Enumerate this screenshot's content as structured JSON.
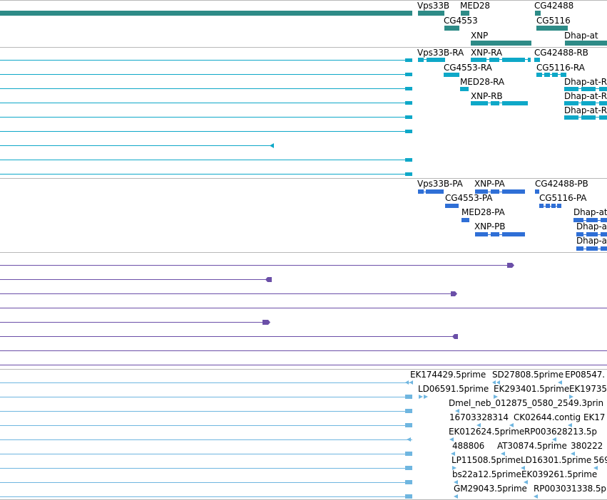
{
  "colors": {
    "gene": "#2e8b87",
    "transcript_flybase": "#0ea8c8",
    "transcript_refseq": "#2f6fd6",
    "mrna_purple": "#6b4fa8",
    "est": "#6fb6e0",
    "separator": "#b8b8b8"
  },
  "tracks": {
    "genes": {
      "labels": [
        "Vps33B",
        "MED28",
        "CG42488",
        "CG4553",
        "CG5116",
        "XNP",
        "Dhap-at"
      ]
    },
    "flybase_transcripts": {
      "labels": [
        "Vps33B-RA",
        "XNP-RA",
        "CG42488-RB",
        "CG4553-RA",
        "CG5116-RA",
        "MED28-RA",
        "Dhap-at-R",
        "XNP-RB",
        "Dhap-at-R",
        "Dhap-at-R"
      ]
    },
    "refseq_transcripts": {
      "labels": [
        "Vps33B-PA",
        "XNP-PA",
        "CG42488-PB",
        "CG4553-PA",
        "CG5116-PA",
        "MED28-PA",
        "Dhap-at",
        "XNP-PB",
        "Dhap-a",
        "Dhap-a"
      ]
    },
    "ests": {
      "labels": [
        "EK174429.5prime",
        "SD27808.5prime",
        "EP08547.",
        "LD06591.5prime",
        "EK293401.5prime",
        "EK19735",
        "Dmel_neb_012875_0580_2549.3prin",
        "16703328314",
        "CK02644.contig",
        "EK17",
        "EK012624.5prime",
        "RP003628213.5p",
        "488806",
        "AT30874.5prime",
        "380222",
        "LP11508.5prime",
        "LD16301.5prime",
        "569",
        "bs22a12.5prime",
        "EK039261.5prime",
        "GM29043.5prime",
        "RP003031338.5p"
      ]
    }
  }
}
